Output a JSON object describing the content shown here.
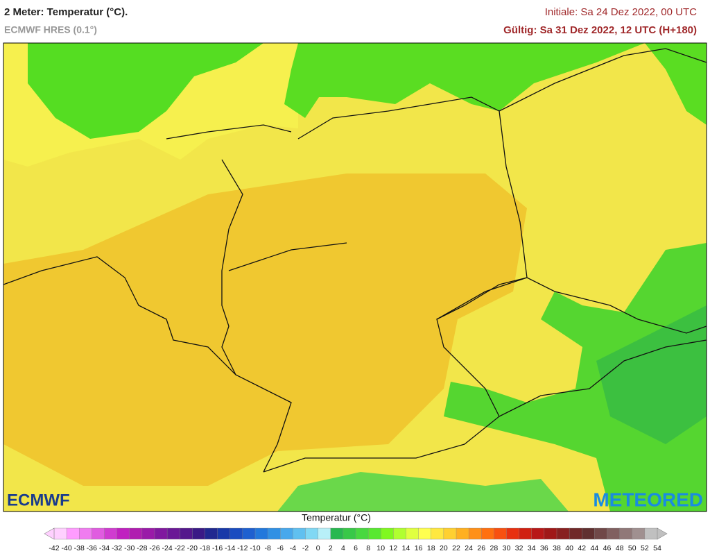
{
  "header": {
    "title": "2 Meter: Temperatur (°C).",
    "model": "ECMWF HRES (0.1°)",
    "init": "Initiale: Sa 24 Dez 2022, 00 UTC",
    "valid": "Gültig: Sa 31 Dez 2022, 12 UTC (H+180)"
  },
  "logos": {
    "left": "ECMWF",
    "right": "METEORED"
  },
  "legend": {
    "title": "Temperatur (°C)",
    "ticks": [
      -42,
      -40,
      -38,
      -36,
      -34,
      -32,
      -30,
      -28,
      -26,
      -24,
      -22,
      -20,
      -18,
      -16,
      -14,
      -12,
      -10,
      -8,
      -6,
      -4,
      -2,
      0,
      2,
      4,
      6,
      8,
      10,
      12,
      14,
      16,
      18,
      20,
      22,
      24,
      26,
      28,
      30,
      32,
      34,
      36,
      38,
      40,
      42,
      44,
      46,
      48,
      50,
      52,
      54
    ],
    "colors": [
      "#ffd0ff",
      "#ff9cff",
      "#f07cf0",
      "#e05ce0",
      "#d03cd0",
      "#c020c0",
      "#b01cb0",
      "#9a1aa8",
      "#80189f",
      "#6a1896",
      "#54188c",
      "#3a1a86",
      "#202890",
      "#1838a8",
      "#1a4cc0",
      "#1e60d0",
      "#2278dc",
      "#3090e4",
      "#48a8ec",
      "#60c0f0",
      "#80d8f4",
      "#b8f0f8",
      "#28b850",
      "#38c848",
      "#48d840",
      "#58e830",
      "#80f820",
      "#b0ff30",
      "#e0ff40",
      "#ffff50",
      "#ffe840",
      "#ffd030",
      "#ffb020",
      "#ff9018",
      "#ff7010",
      "#f85010",
      "#e83010",
      "#d02010",
      "#b81818",
      "#a01818",
      "#882020",
      "#702828",
      "#603030",
      "#704848",
      "#806060",
      "#907878",
      "#a09090",
      "#c0c0c0"
    ]
  }
}
